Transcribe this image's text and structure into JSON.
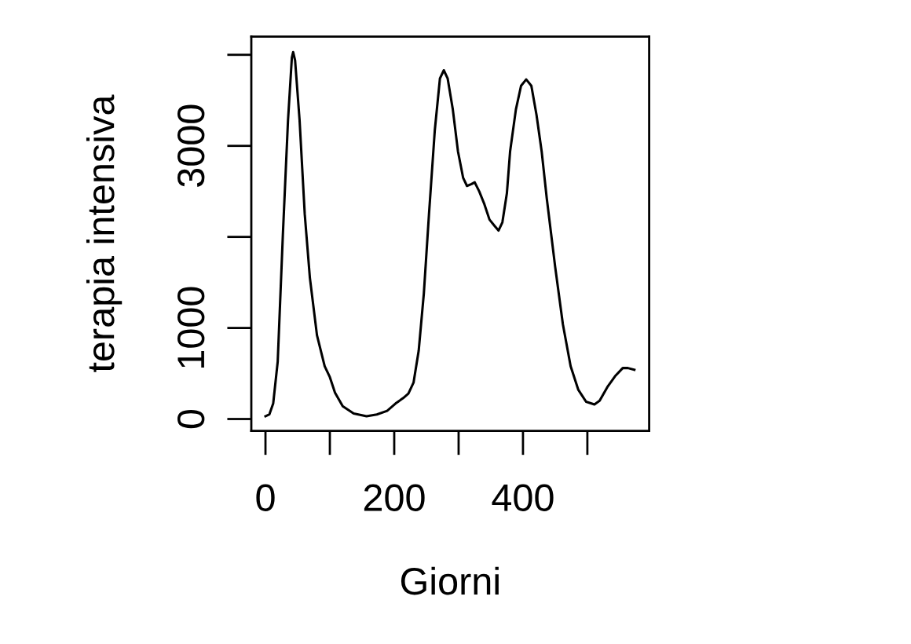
{
  "chart_data": {
    "type": "line",
    "xlabel": "Giorni",
    "ylabel": "terapia intensiva",
    "x": [
      0,
      6,
      12,
      19,
      27,
      35,
      41,
      43,
      46,
      53,
      61,
      69,
      80,
      92,
      100,
      108,
      120,
      137,
      157,
      173,
      189,
      202,
      214,
      222,
      230,
      238,
      246,
      254,
      263,
      271,
      277,
      283,
      291,
      299,
      307,
      313,
      320,
      325,
      332,
      340,
      348,
      356,
      362,
      368,
      375,
      380,
      389,
      397,
      405,
      413,
      421,
      429,
      437,
      450,
      462,
      474,
      486,
      498,
      511,
      519,
      531,
      543,
      555,
      563,
      573
    ],
    "series": [
      {
        "color": "#000000",
        "values": [
          30,
          50,
          170,
          630,
          2020,
          3280,
          3970,
          4030,
          3940,
          3280,
          2250,
          1550,
          920,
          580,
          460,
          290,
          140,
          60,
          30,
          50,
          90,
          170,
          230,
          280,
          400,
          750,
          1380,
          2250,
          3170,
          3740,
          3830,
          3740,
          3400,
          2940,
          2650,
          2560,
          2580,
          2600,
          2500,
          2360,
          2190,
          2120,
          2070,
          2160,
          2480,
          2940,
          3400,
          3660,
          3730,
          3660,
          3340,
          2940,
          2420,
          1670,
          1040,
          580,
          320,
          190,
          160,
          200,
          350,
          470,
          560,
          560,
          540
        ]
      }
    ],
    "xlim": [
      -22,
      596
    ],
    "ylim": [
      -130,
      4200
    ],
    "xticks": [
      0,
      {
        "value": 100,
        "label": null
      },
      200,
      {
        "value": 300,
        "label": null
      },
      400,
      {
        "value": 500,
        "label": null
      }
    ],
    "yticks": [
      0,
      1000,
      {
        "value": 2000,
        "label": null
      },
      3000,
      {
        "value": 4000,
        "label": null
      }
    ],
    "line_style": "solid"
  }
}
